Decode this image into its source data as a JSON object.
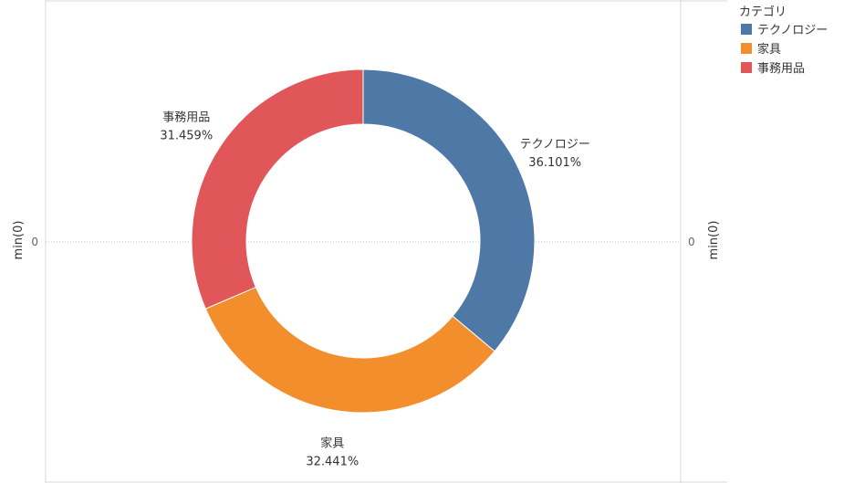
{
  "chart_data": {
    "type": "pie",
    "donut": true,
    "categories": [
      "テクノロジー",
      "家具",
      "事務用品"
    ],
    "values": [
      36.101,
      32.441,
      31.459
    ],
    "value_labels": [
      "36.101%",
      "32.441%",
      "31.459%"
    ],
    "colors": [
      "#4e79a7",
      "#f28e2b",
      "#e15759"
    ],
    "left_axis_label": "min(0)",
    "right_axis_label": "min(0)",
    "left_tick_label": "0",
    "right_tick_label": "0",
    "legend": {
      "title": "カテゴリ",
      "position": "top-right",
      "items": [
        "テクノロジー",
        "家具",
        "事務用品"
      ]
    }
  }
}
